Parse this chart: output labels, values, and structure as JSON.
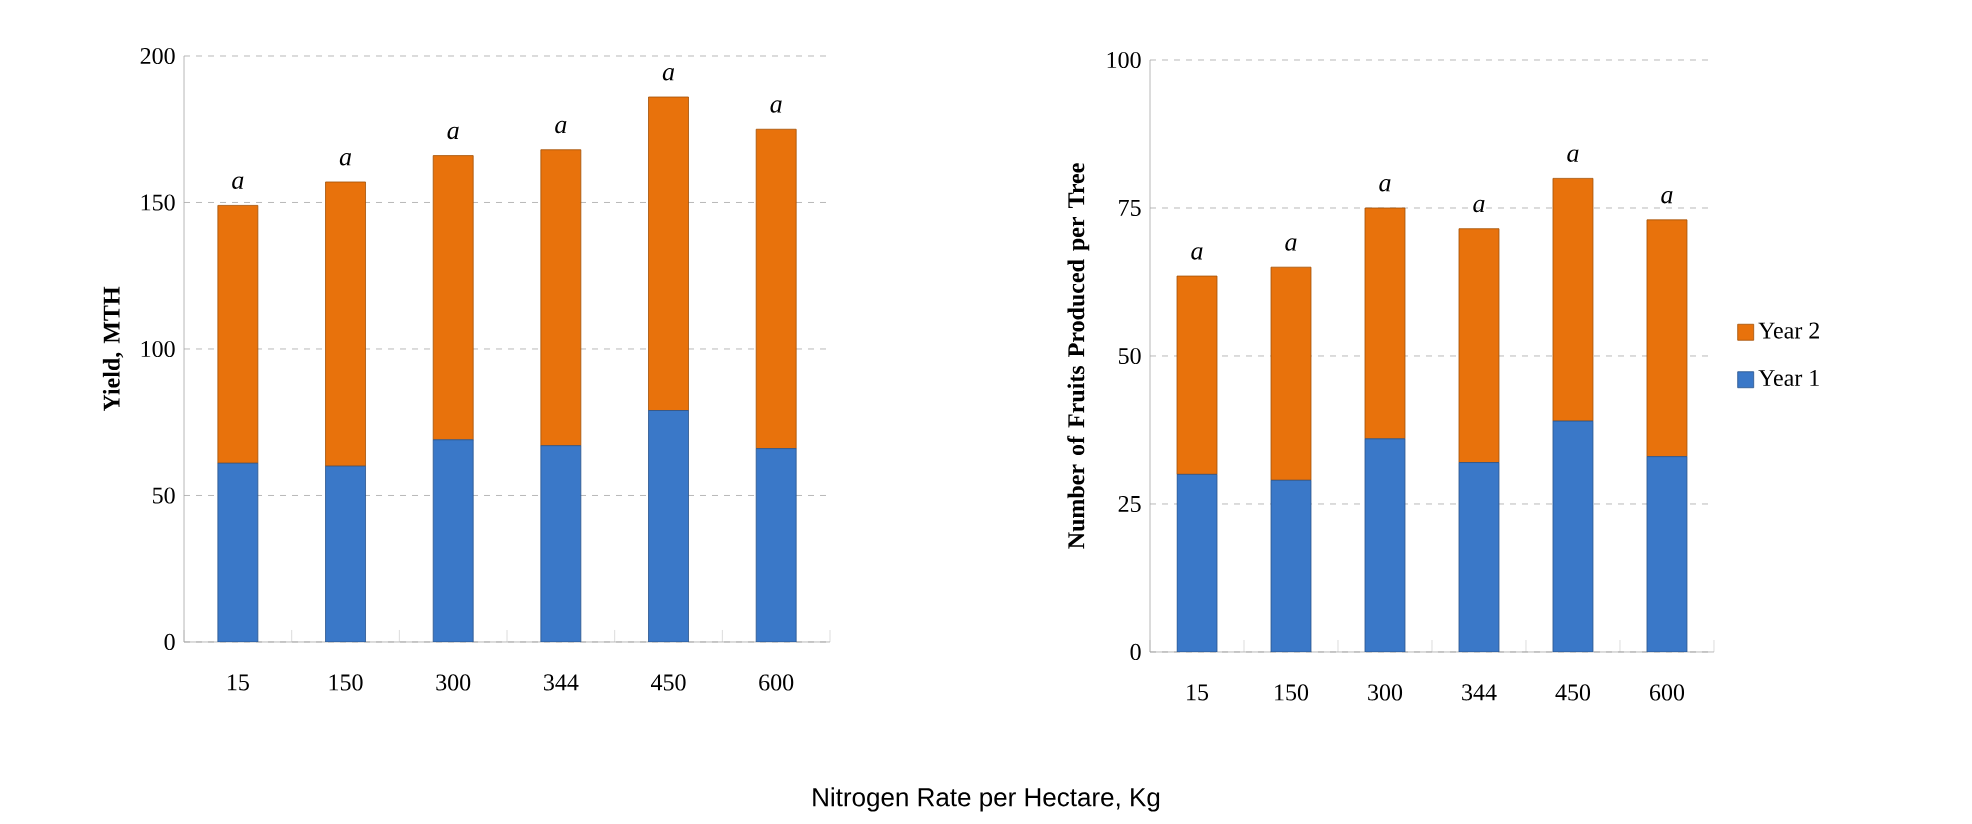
{
  "chart_data": [
    {
      "type": "bar",
      "stacked": true,
      "ylabel": "Yield, MTH",
      "xlabel": "Nitrogen Rate per Hectare, Kg",
      "categories": [
        "15",
        "150",
        "300",
        "344",
        "450",
        "600"
      ],
      "ylim": [
        0,
        200
      ],
      "yticks": [
        0,
        50,
        100,
        150,
        200
      ],
      "grid": "y",
      "series": [
        {
          "color": "#3a78c8",
          "values": [
            61,
            60,
            69,
            67,
            79,
            66
          ]
        },
        {
          "color": "#e8720c",
          "values": [
            88,
            97,
            97,
            101,
            107,
            109
          ]
        }
      ],
      "annotations": [
        {
          "text": "a",
          "x": "15",
          "y": 149
        },
        {
          "text": "a",
          "x": "150",
          "y": 157
        },
        {
          "text": "a",
          "x": "300",
          "y": 166
        },
        {
          "text": "a",
          "x": "344",
          "y": 168
        },
        {
          "text": "a",
          "x": "450",
          "y": 186
        },
        {
          "text": "a",
          "x": "600",
          "y": 175
        }
      ]
    },
    {
      "type": "bar",
      "stacked": true,
      "ylabel": "Number of Fruits Produced per Tree",
      "categories": [
        "15",
        "150",
        "300",
        "344",
        "450",
        "600"
      ],
      "ylim": [
        0,
        100
      ],
      "yticks": [
        0,
        25,
        50,
        75,
        100
      ],
      "grid": "y",
      "legend": "right",
      "series": [
        {
          "name": "Year 1",
          "color": "#3a78c8",
          "values": [
            30,
            29,
            36,
            32,
            39,
            33
          ]
        },
        {
          "name": "Year 2",
          "color": "#e8720c",
          "values": [
            33.5,
            36,
            39,
            39.5,
            41,
            40
          ]
        }
      ],
      "annotations": [
        {
          "text": "a",
          "x": "15",
          "y": 63.5
        },
        {
          "text": "a",
          "x": "150",
          "y": 65
        },
        {
          "text": "a",
          "x": "300",
          "y": 75
        },
        {
          "text": "a",
          "x": "344",
          "y": 71.5
        },
        {
          "text": "a",
          "x": "450",
          "y": 80
        },
        {
          "text": "a",
          "x": "600",
          "y": 73
        }
      ]
    }
  ]
}
